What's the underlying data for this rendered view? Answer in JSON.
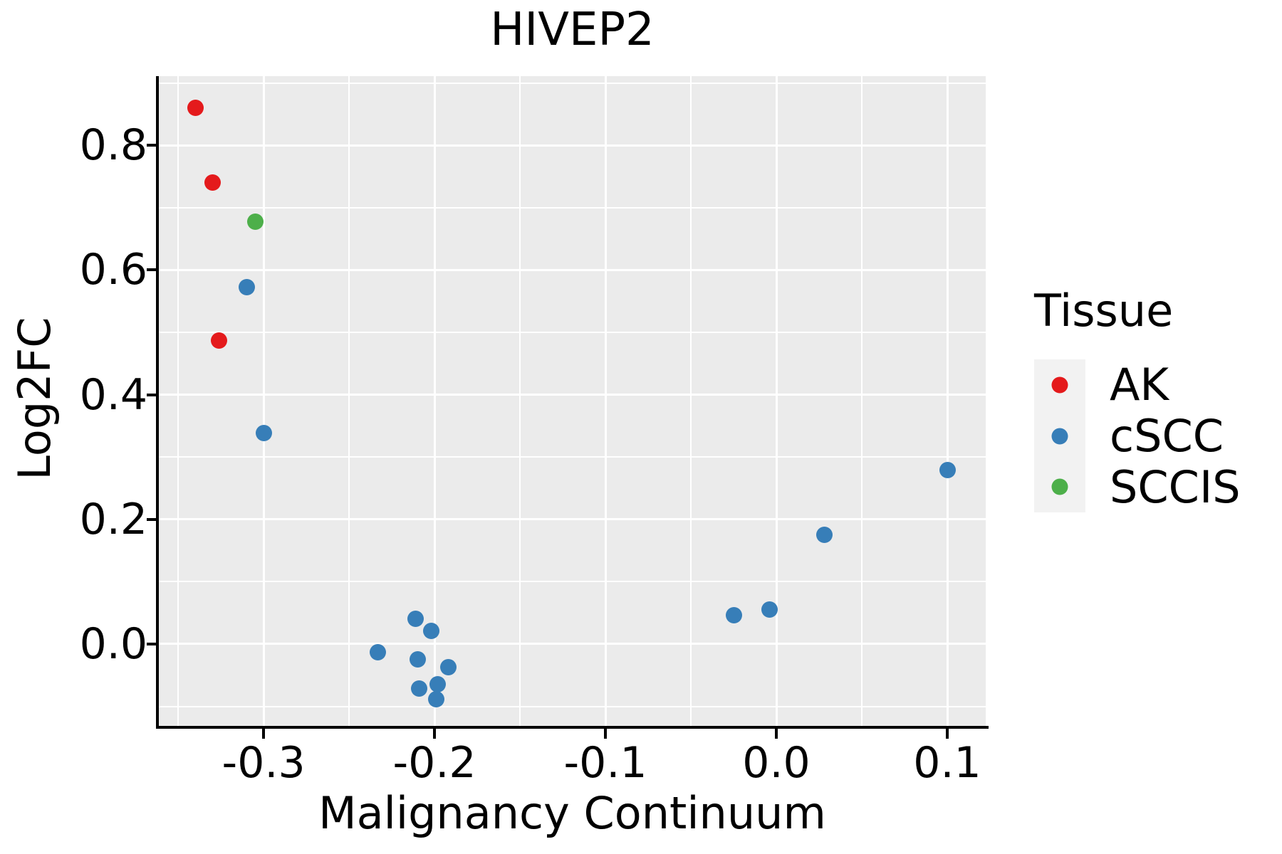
{
  "chart": {
    "title": "HIVEP2",
    "xlabel": "Malignancy Continuum",
    "ylabel": "Log2FC",
    "legend_title": "Tissue"
  },
  "chart_data": {
    "type": "scatter",
    "title": "HIVEP2",
    "xlabel": "Malignancy Continuum",
    "ylabel": "Log2FC",
    "xlim": [
      -0.3613,
      0.1225
    ],
    "ylim": [
      -0.1313,
      0.911
    ],
    "grid": true,
    "panel_bg": "#EBEBEB",
    "grid_color": "#FFFFFF",
    "legend_position": "right",
    "legend_title": "Tissue",
    "legend_key_bg": "#F2F2F2",
    "x_major_ticks": [
      -0.3,
      -0.2,
      -0.1,
      0.0,
      0.1
    ],
    "x_tick_labels": [
      "-0.3",
      "-0.2",
      "-0.1",
      "0.0",
      "0.1"
    ],
    "x_minor_ticks": [
      -0.35,
      -0.25,
      -0.15,
      -0.05,
      0.05
    ],
    "y_major_ticks": [
      0.0,
      0.2,
      0.4,
      0.6,
      0.8
    ],
    "y_tick_labels": [
      "0.0",
      "0.2",
      "0.4",
      "0.6",
      "0.8"
    ],
    "y_minor_ticks": [
      -0.1,
      0.1,
      0.3,
      0.5,
      0.7,
      0.9
    ],
    "series": [
      {
        "name": "AK",
        "color": "#E41A1C",
        "points": [
          [
            -0.34,
            0.86
          ],
          [
            -0.33,
            0.74
          ],
          [
            -0.326,
            0.487
          ]
        ]
      },
      {
        "name": "cSCC",
        "color": "#377EB8",
        "points": [
          [
            -0.31,
            0.573
          ],
          [
            -0.3,
            0.338
          ],
          [
            -0.233,
            -0.013
          ],
          [
            -0.211,
            0.041
          ],
          [
            -0.202,
            0.021
          ],
          [
            -0.21,
            -0.024
          ],
          [
            -0.192,
            -0.037
          ],
          [
            -0.198,
            -0.065
          ],
          [
            -0.209,
            -0.071
          ],
          [
            -0.199,
            -0.088
          ],
          [
            -0.025,
            0.046
          ],
          [
            -0.004,
            0.055
          ],
          [
            0.028,
            0.175
          ],
          [
            0.1,
            0.279
          ]
        ]
      },
      {
        "name": "SCCIS",
        "color": "#4DAF4A",
        "points": [
          [
            -0.305,
            0.677
          ]
        ]
      }
    ]
  }
}
